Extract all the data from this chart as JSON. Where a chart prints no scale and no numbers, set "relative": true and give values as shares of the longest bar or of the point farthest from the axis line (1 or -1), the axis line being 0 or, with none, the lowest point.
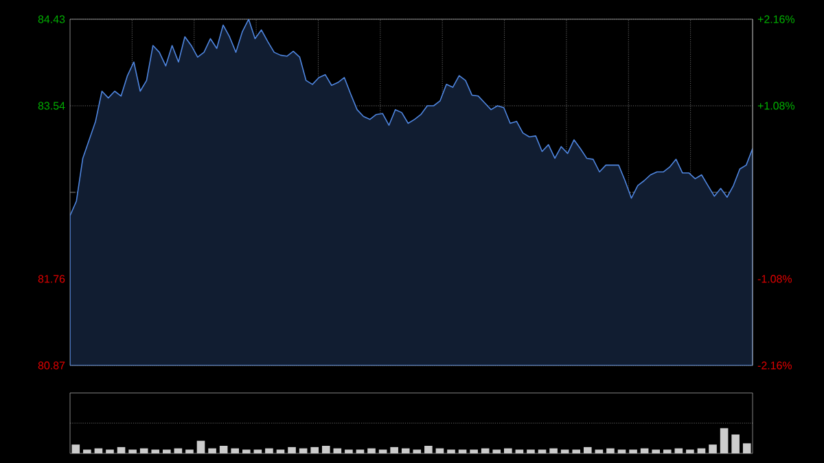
{
  "chart_data": [
    {
      "type": "area",
      "color": "#4f86e0",
      "categories": [
        null,
        null,
        null,
        null,
        null,
        null,
        null,
        null,
        null,
        null,
        null,
        null,
        null,
        null,
        null,
        null,
        null,
        null,
        null,
        null,
        null,
        null,
        null,
        null,
        null,
        null,
        null,
        null,
        null,
        null,
        null,
        null,
        null,
        null,
        null,
        null,
        null,
        null,
        null,
        null,
        null,
        null,
        null,
        null,
        null,
        null,
        null,
        null,
        null,
        null,
        null,
        null,
        null,
        null,
        null,
        null,
        null,
        null,
        null,
        null,
        null,
        null,
        null,
        null,
        null,
        null,
        null,
        null,
        null,
        null,
        null,
        null,
        null,
        null,
        null,
        null,
        null,
        null,
        null,
        null,
        null,
        null,
        null,
        null,
        null,
        null,
        null,
        null,
        null,
        null,
        null,
        null,
        null,
        null,
        null,
        null,
        null,
        null,
        null,
        null,
        null,
        null,
        null,
        null,
        null,
        null,
        null,
        null
      ],
      "values": [
        82.41,
        82.56,
        83.0,
        83.19,
        83.38,
        83.69,
        83.62,
        83.69,
        83.64,
        83.85,
        83.99,
        83.69,
        83.8,
        84.16,
        84.09,
        83.95,
        84.16,
        83.99,
        84.25,
        84.16,
        84.04,
        84.09,
        84.23,
        84.13,
        84.37,
        84.25,
        84.09,
        84.3,
        84.43,
        84.23,
        84.32,
        84.2,
        84.09,
        84.06,
        84.05,
        84.1,
        84.04,
        83.8,
        83.76,
        83.83,
        83.86,
        83.75,
        83.78,
        83.83,
        83.66,
        83.5,
        83.43,
        83.4,
        83.45,
        83.46,
        83.34,
        83.5,
        83.47,
        83.36,
        83.4,
        83.45,
        83.54,
        83.54,
        83.59,
        83.76,
        83.73,
        83.85,
        83.8,
        83.65,
        83.64,
        83.57,
        83.5,
        83.54,
        83.52,
        83.36,
        83.38,
        83.26,
        83.22,
        83.23,
        83.07,
        83.14,
        83.0,
        83.12,
        83.05,
        83.19,
        83.1,
        83.0,
        82.99,
        82.86,
        82.93,
        82.93,
        82.93,
        82.77,
        82.59,
        82.72,
        82.77,
        82.83,
        82.86,
        82.86,
        82.91,
        82.99,
        82.85,
        82.85,
        82.79,
        82.83,
        82.72,
        82.61,
        82.69,
        82.6,
        82.72,
        82.89,
        82.93,
        83.1
      ],
      "ylim": [
        80.87,
        84.43
      ],
      "yticks": [
        80.87,
        81.76,
        83.54,
        84.43
      ],
      "y2lim": [
        -2.16,
        2.16
      ],
      "y2ticks": [
        {
          "value": -2.16,
          "label": "-2.16%"
        },
        {
          "value": -1.08,
          "label": "-1.08%"
        },
        {
          "value": 1.08,
          "label": "+1.08%"
        },
        {
          "value": 2.16,
          "label": "+2.16%"
        }
      ],
      "ref_lines": [
        {
          "axis": "y",
          "value": 82.65,
          "line_style": "dashed"
        }
      ],
      "grid": true
    },
    {
      "type": "bar",
      "color": "#cccccc",
      "relative": true,
      "grid": true,
      "categories": [
        null,
        null,
        null,
        null,
        null,
        null,
        null,
        null,
        null,
        null,
        null,
        null,
        null,
        null,
        null,
        null,
        null,
        null,
        null,
        null,
        null,
        null,
        null,
        null,
        null,
        null,
        null,
        null,
        null,
        null,
        null,
        null,
        null,
        null,
        null,
        null,
        null,
        null,
        null,
        null,
        null,
        null,
        null,
        null,
        null,
        null,
        null,
        null,
        null,
        null,
        null,
        null,
        null,
        null,
        null,
        null,
        null,
        null,
        null,
        null
      ],
      "values": [
        0.35,
        0.15,
        0.2,
        0.15,
        0.25,
        0.15,
        0.2,
        0.15,
        0.15,
        0.2,
        0.15,
        0.5,
        0.2,
        0.3,
        0.2,
        0.15,
        0.15,
        0.2,
        0.15,
        0.25,
        0.2,
        0.25,
        0.3,
        0.2,
        0.15,
        0.15,
        0.2,
        0.15,
        0.25,
        0.2,
        0.15,
        0.3,
        0.2,
        0.15,
        0.15,
        0.15,
        0.2,
        0.15,
        0.2,
        0.15,
        0.15,
        0.15,
        0.2,
        0.15,
        0.15,
        0.25,
        0.15,
        0.2,
        0.15,
        0.15,
        0.2,
        0.15,
        0.15,
        0.2,
        0.15,
        0.2,
        0.35,
        1.0,
        0.75,
        0.4
      ]
    }
  ]
}
